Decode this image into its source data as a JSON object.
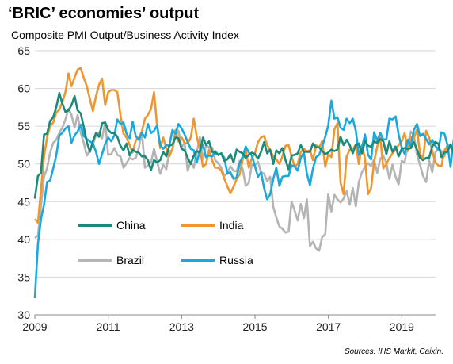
{
  "header": {
    "title": "‘BRIC’ economies’ output",
    "subtitle": "Composite PMI Output/Business Activity Index",
    "source": "Sources: IHS Markit, Caixin."
  },
  "chart_data": {
    "type": "line",
    "title": "‘BRIC’ economies’ output",
    "subtitle": "Composite PMI Output/Business Activity Index",
    "xlim": [
      2009,
      2019.92
    ],
    "ylim": [
      30,
      65
    ],
    "x_ticks": [
      2009,
      2011,
      2013,
      2015,
      2017,
      2019
    ],
    "y_ticks": [
      30,
      35,
      40,
      45,
      50,
      55,
      60,
      65
    ],
    "grid": "horizontal",
    "legend": "inside-lower-left",
    "series": [
      {
        "name": "China",
        "color": "#1a8a7a",
        "x_start": 2009.0,
        "x_step": 0.0833,
        "values": [
          45.4,
          48.4,
          48.8,
          53.9,
          54.0,
          55.7,
          56.2,
          57.5,
          59.4,
          58.0,
          56.9,
          57.1,
          57.8,
          59.0,
          57.1,
          56.7,
          54.9,
          52.9,
          51.6,
          53.0,
          54.1,
          53.6,
          55.4,
          55.5,
          54.5,
          54.1,
          54.1,
          53.6,
          52.4,
          51.8,
          52.7,
          51.1,
          51.9,
          51.6,
          51.5,
          51.0,
          51.0,
          50.5,
          49.2,
          50.5,
          50.2,
          50.5,
          51.6,
          51.0,
          52.4,
          52.6,
          53.5,
          53.4,
          52.0,
          51.8,
          50.8,
          50.0,
          51.1,
          51.7,
          51.5,
          53.5,
          52.5,
          53.0,
          51.6,
          51.5,
          51.2,
          51.4,
          50.4,
          50.6,
          51.3,
          50.2,
          51.9,
          51.6,
          51.4,
          50.8,
          51.2,
          51.5,
          51.3,
          50.7,
          51.6,
          52.9,
          51.4,
          51.9,
          50.0,
          51.8,
          51.4,
          52.1,
          50.5,
          49.3,
          51.1,
          51.2,
          51.4,
          52.5,
          51.6,
          51.6,
          51.6,
          52.7,
          52.2,
          52.2,
          51.7,
          51.3,
          51.5,
          51.9,
          51.7,
          51.9,
          53.6,
          52.5,
          53.2,
          52.5,
          51.4,
          52.5,
          52.7,
          51.4,
          53.1,
          52.4,
          52.3,
          53.0,
          52.8,
          53.3,
          53.0,
          51.3,
          53.0,
          51.6,
          52.3,
          51.0,
          52.0,
          52.1,
          52.0,
          52.1,
          52.9,
          51.9,
          50.8,
          50.5,
          50.8,
          50.8,
          52.3,
          52.9,
          52.7,
          50.9,
          51.5,
          51.6,
          52.6,
          51.5,
          51.9,
          51.6,
          52.0
        ]
      },
      {
        "name": "India",
        "color": "#f0962e",
        "x_start": 2009.0,
        "x_step": 0.0833,
        "values": [
          42.7,
          42.2,
          46.5,
          51.0,
          53.5,
          55.0,
          55.5,
          56.8,
          57.2,
          58.2,
          59.5,
          62.0,
          60.3,
          61.5,
          62.5,
          62.7,
          61.4,
          60.3,
          58.6,
          57.0,
          59.0,
          60.5,
          61.3,
          57.8,
          59.5,
          59.8,
          59.8,
          59.5,
          56.5,
          54.0,
          53.5,
          52.5,
          51.5,
          53.1,
          53.5,
          54.3,
          56.0,
          56.5,
          57.3,
          59.5,
          55.0,
          52.1,
          53.5,
          52.0,
          51.0,
          52.0,
          54.5,
          53.0,
          53.5,
          52.8,
          52.7,
          53.5,
          56.0,
          53.5,
          52.0,
          49.6,
          50.0,
          51.9,
          50.5,
          49.5,
          49.5,
          49.1,
          48.0,
          47.0,
          46.1,
          47.0,
          48.0,
          48.6,
          50.6,
          51.9,
          49.5,
          50.8,
          51.4,
          52.9,
          53.5,
          53.7,
          52.5,
          51.8,
          51.0,
          50.6,
          50.0,
          51.0,
          52.4,
          52.5,
          51.0,
          49.6,
          50.0,
          51.6,
          52.0,
          51.7,
          51.8,
          50.5,
          52.5,
          52.2,
          53.0,
          49.6,
          51.3,
          50.9,
          54.6,
          55.4,
          47.5,
          46.0,
          51.0,
          51.9,
          51.9,
          52.6,
          50.0,
          52.5,
          50.7,
          46.0,
          46.8,
          50.3,
          52.3,
          53.5,
          49.4,
          50.0,
          50.8,
          51.4,
          51.9,
          52.5,
          53.0,
          54.1,
          51.7,
          53.6,
          53.4,
          54.6,
          51.4,
          50.6,
          54.4,
          53.5,
          51.7,
          50.2,
          49.8,
          49.7,
          51.8,
          52.4
        ]
      },
      {
        "name": "Brazil",
        "color": "#b4b4b4",
        "x_start": 2009.0,
        "x_step": 0.0833,
        "values": [
          40.2,
          40.5,
          44.4,
          48.3,
          49.4,
          51.5,
          52.8,
          53.2,
          54.1,
          54.8,
          55.9,
          57.3,
          56.5,
          54.8,
          56.5,
          54.1,
          52.8,
          51.1,
          51.8,
          52.6,
          53.8,
          54.2,
          53.4,
          55.5,
          51.2,
          51.3,
          52.1,
          51.2,
          51.0,
          49.5,
          50.1,
          50.8,
          50.6,
          50.8,
          52.1,
          54.3,
          49.5,
          49.8,
          50.2,
          52.0,
          50.3,
          48.7,
          49.9,
          49.3,
          51.6,
          51.9,
          53.8,
          54.4,
          52.2,
          52.8,
          49.1,
          50.3,
          49.5,
          51.6,
          53.6,
          50.6,
          52.5,
          52.2,
          52.2,
          50.5,
          50.1,
          49.5,
          48.4,
          48.8,
          49.7,
          49.1,
          49.0,
          50.4,
          49.3,
          47.1,
          47.5,
          50.0,
          49.8,
          50.3,
          48.9,
          48.7,
          47.7,
          48.3,
          44.3,
          42.9,
          41.7,
          41.4,
          40.9,
          41.0,
          45.0,
          43.8,
          42.5,
          44.7,
          42.8,
          45.3,
          39.1,
          39.7,
          38.8,
          38.5,
          40.3,
          40.7,
          46.0,
          43.7,
          45.9,
          45.3,
          44.9,
          45.4,
          46.4,
          44.6,
          46.8,
          44.4,
          47.6,
          48.9,
          49.6,
          50.1,
          49.7,
          50.6,
          48.8,
          50.7,
          51.1,
          50.1,
          48.0,
          49.9,
          48.3,
          47.3,
          50.4,
          50.2,
          52.6,
          54.3,
          53.8,
          51.2,
          49.9,
          48.4,
          47.6,
          50.5,
          48.9,
          51.5,
          52.0,
          51.7,
          51.0,
          52.6,
          52.2,
          51.6,
          52.0
        ]
      },
      {
        "name": "Russia",
        "color": "#1aa9df",
        "x_start": 2009.0,
        "x_step": 0.0833,
        "values": [
          32.2,
          39.4,
          42.7,
          44.6,
          47.6,
          47.8,
          49.4,
          51.1,
          53.8,
          54.1,
          54.7,
          55.0,
          52.8,
          53.8,
          54.3,
          55.2,
          53.7,
          53.3,
          53.0,
          52.7,
          51.6,
          50.0,
          51.3,
          52.7,
          53.5,
          53.0,
          53.8,
          55.9,
          55.3,
          55.5,
          54.0,
          53.4,
          55.6,
          53.7,
          53.2,
          54.1,
          53.5,
          55.3,
          54.1,
          54.4,
          55.1,
          52.5,
          52.0,
          52.5,
          52.4,
          54.5,
          54.0,
          55.3,
          54.7,
          53.9,
          52.9,
          52.0,
          51.8,
          50.2,
          51.8,
          52.5,
          50.9,
          51.1,
          51.0,
          51.7,
          51.2,
          51.4,
          50.8,
          48.7,
          48.9,
          48.0,
          48.2,
          50.1,
          51.0,
          52.3,
          51.5,
          51.1,
          49.7,
          48.3,
          48.9,
          46.8,
          45.3,
          46.0,
          48.0,
          49.5,
          47.1,
          48.3,
          48.4,
          48.4,
          49.8,
          49.7,
          49.1,
          50.8,
          51.5,
          48.7,
          47.2,
          49.4,
          50.9,
          51.2,
          52.3,
          53.6,
          55.1,
          58.4,
          56.0,
          56.2,
          54.8,
          54.5,
          56.0,
          55.4,
          56.0,
          54.4,
          51.2,
          52.2,
          53.9,
          51.2,
          50.6,
          54.2,
          53.1,
          54.1,
          53.2,
          53.3,
          56.0,
          55.9,
          56.3,
          53.9,
          52.2,
          51.3,
          53.2,
          52.3,
          54.5,
          55.3,
          53.7,
          54.0,
          53.3,
          52.6,
          53.2,
          52.4,
          51.9,
          54.2,
          54.0,
          52.5,
          49.6,
          53.2,
          52.9
        ]
      }
    ]
  }
}
